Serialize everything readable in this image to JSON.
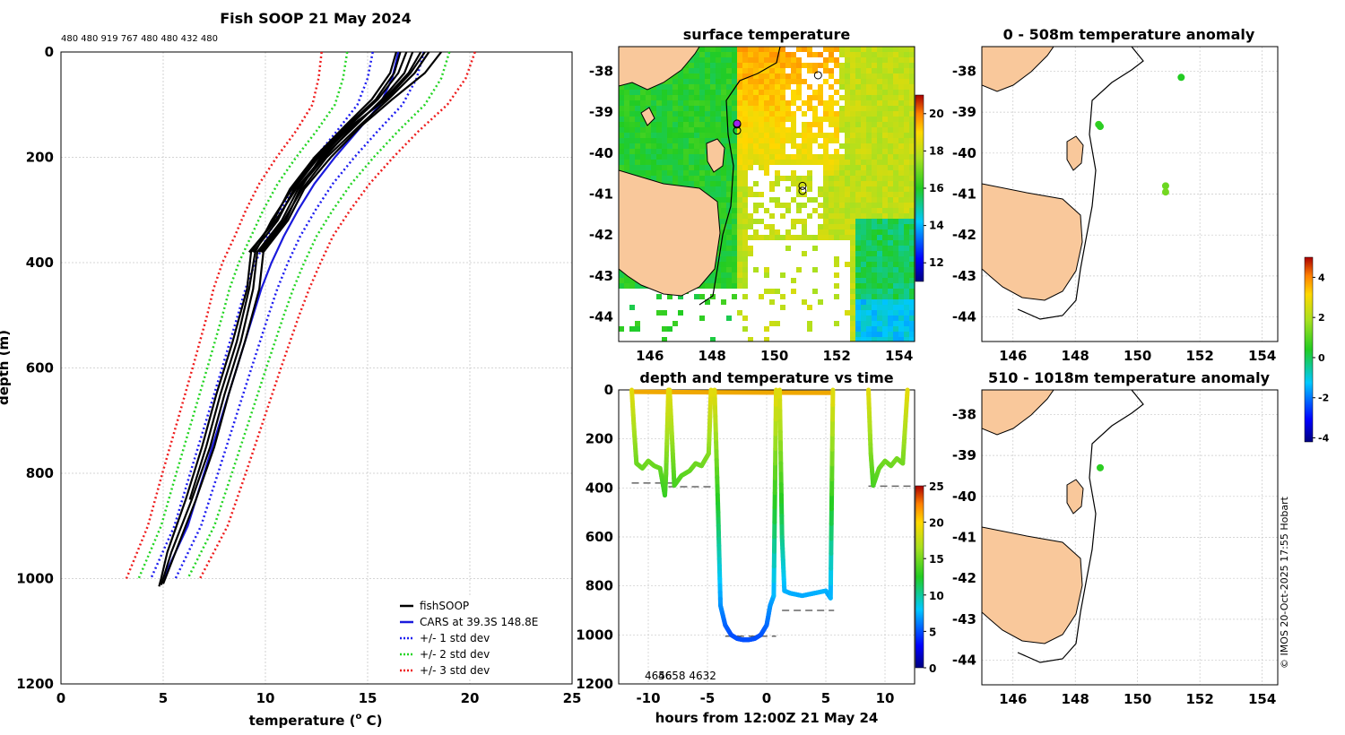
{
  "figure": {
    "title": "Fish SOOP 21 May 2024",
    "header_note": "480 480 919 767 480 480 432 480",
    "credit": "© IMOS 20-Oct-2025 17:55 Hobart"
  },
  "colors": {
    "land": "#f9c89b",
    "fishsoop": "#000000",
    "cars": "#1a1adc",
    "std1": "#1c1cf0",
    "std2": "#22d422",
    "std3": "#ee1c1c",
    "grid": "#c8c8c8"
  },
  "chart_data": [
    {
      "id": "profile",
      "type": "line",
      "title": "",
      "xlabel": "temperature (°C)",
      "xlabel_main": "temperature (",
      "xlabel_sup": "o",
      "xlabel_end": " C)",
      "ylabel": "depth (m)",
      "xlim": [
        0,
        25
      ],
      "ylim": [
        0,
        1200
      ],
      "xticks": [
        "0",
        "5",
        "10",
        "15",
        "20",
        "25"
      ],
      "yticks": [
        "0",
        "200",
        "400",
        "600",
        "800",
        "1000",
        "1200"
      ],
      "depth": [
        0,
        50,
        100,
        150,
        200,
        250,
        300,
        350,
        400,
        450,
        500,
        600,
        700,
        800,
        900,
        1000
      ],
      "cars_mean": [
        16.5,
        16.2,
        15.6,
        14.5,
        13.4,
        12.4,
        11.6,
        10.9,
        10.3,
        9.8,
        9.4,
        8.6,
        7.8,
        7.0,
        6.2,
        5.0
      ],
      "cars_std": [
        1.25,
        1.2,
        1.1,
        1.0,
        0.95,
        0.9,
        0.85,
        0.8,
        0.8,
        0.78,
        0.75,
        0.72,
        0.7,
        0.68,
        0.65,
        0.6
      ],
      "series": [
        {
          "name": "fishSOOP",
          "depth": [
            0,
            40,
            90,
            140,
            200,
            260,
            320,
            380,
            450,
            550,
            650,
            750,
            850,
            950,
            1000,
            1015
          ],
          "values": [
            16.4,
            16.1,
            15.2,
            13.9,
            12.4,
            11.2,
            10.4,
            9.3,
            9.1,
            8.4,
            7.6,
            6.9,
            6.1,
            5.2,
            4.9,
            4.8
          ]
        },
        {
          "name": "fishSOOP",
          "depth": [
            0,
            40,
            90,
            140,
            200,
            260,
            320,
            380,
            450,
            550,
            650,
            750,
            850,
            950,
            1000,
            1012
          ],
          "values": [
            17.6,
            17.0,
            15.8,
            14.3,
            12.9,
            11.6,
            10.8,
            9.6,
            9.4,
            8.8,
            8.0,
            7.3,
            6.4,
            5.4,
            5.0,
            4.9
          ]
        },
        {
          "name": "fishSOOP",
          "depth": [
            0,
            40,
            90,
            140,
            200,
            260,
            320,
            380,
            450,
            550,
            650,
            750,
            850,
            950,
            1000,
            1010
          ],
          "values": [
            18.6,
            17.8,
            16.2,
            14.7,
            13.2,
            11.9,
            11.1,
            9.9,
            9.7,
            9.0,
            8.2,
            7.5,
            6.6,
            5.6,
            5.1,
            5.0
          ]
        },
        {
          "name": "fishSOOP",
          "depth": [
            0,
            40,
            90,
            140,
            200,
            260,
            320,
            380
          ],
          "values": [
            16.9,
            16.5,
            15.5,
            14.1,
            12.6,
            11.4,
            10.6,
            9.4
          ]
        },
        {
          "name": "fishSOOP",
          "depth": [
            0,
            40,
            90,
            140,
            200,
            260,
            320,
            380
          ],
          "values": [
            17.2,
            16.8,
            15.7,
            14.4,
            12.8,
            11.5,
            10.5,
            9.2
          ]
        },
        {
          "name": "fishSOOP",
          "depth": [
            0,
            40,
            90,
            140,
            200,
            260,
            320,
            380
          ],
          "values": [
            18.0,
            17.3,
            16.0,
            14.6,
            13.0,
            11.8,
            10.9,
            9.7
          ]
        },
        {
          "name": "fishSOOP",
          "depth": [
            0,
            40,
            90,
            140,
            200,
            260,
            320,
            380,
            450,
            550,
            650,
            750,
            850
          ],
          "values": [
            16.6,
            16.3,
            15.4,
            14.0,
            12.5,
            11.3,
            10.3,
            9.5,
            9.2,
            8.6,
            7.8,
            7.1,
            6.3
          ]
        },
        {
          "name": "fishSOOP",
          "depth": [
            0,
            40,
            90,
            140,
            200,
            260,
            320,
            380
          ],
          "values": [
            17.8,
            17.1,
            15.9,
            14.2,
            12.7,
            11.7,
            11.0,
            9.8
          ]
        }
      ],
      "legend": [
        {
          "label": "fishSOOP",
          "style": "solid",
          "color": "#000000"
        },
        {
          "label": "CARS at 39.3S 148.8E",
          "style": "solid",
          "color": "#1a1adc"
        },
        {
          "label": "+/- 1 std dev",
          "style": "dotted",
          "color": "#1c1cf0"
        },
        {
          "label": "+/- 2 std dev",
          "style": "dotted",
          "color": "#22d422"
        },
        {
          "label": "+/- 3 std dev",
          "style": "dotted",
          "color": "#ee1c1c"
        }
      ],
      "legend_position": "bottom-right"
    },
    {
      "id": "sst_map",
      "type": "heatmap",
      "title": "surface temperature",
      "xlim": [
        145,
        154.5
      ],
      "ylim": [
        -44.6,
        -37.4
      ],
      "xticks": [
        "146",
        "148",
        "150",
        "152",
        "154"
      ],
      "yticks": [
        "-38",
        "-39",
        "-40",
        "-41",
        "-42",
        "-43",
        "-44"
      ],
      "colorbar": {
        "range": [
          11,
          21
        ],
        "ticks": [
          "12",
          "14",
          "16",
          "18",
          "20"
        ]
      },
      "stations": [
        {
          "lon": 148.8,
          "lat": -39.3
        },
        {
          "lon": 148.8,
          "lat": -39.45
        },
        {
          "lon": 150.9,
          "lat": -40.8
        },
        {
          "lon": 150.9,
          "lat": -40.92
        },
        {
          "lon": 151.4,
          "lat": -38.1
        }
      ]
    },
    {
      "id": "depth_time",
      "type": "scatter",
      "title": "depth and temperature vs time",
      "xlabel": "hours from 12:00Z 21 May 24",
      "xlim": [
        -12.5,
        12.5
      ],
      "ylim": [
        0,
        1200
      ],
      "xticks": [
        "-10",
        "-5",
        "0",
        "5",
        "10"
      ],
      "yticks": [
        "0",
        "200",
        "400",
        "600",
        "800",
        "1000",
        "1200"
      ],
      "colorbar": {
        "range": [
          0,
          25
        ],
        "ticks": [
          "0",
          "5",
          "10",
          "15",
          "20",
          "25"
        ]
      },
      "annotation": "4658 4632",
      "annotation_overlay": "4656",
      "dives": [
        {
          "t": [
            -11.4,
            -11.2,
            -11.0,
            -10.5,
            -10.0,
            -9.5,
            -9.0,
            -8.6,
            -8.5,
            -8.3
          ],
          "d": [
            0,
            160,
            300,
            320,
            290,
            310,
            320,
            430,
            340,
            0
          ]
        },
        {
          "t": [
            -8.2,
            -8.0,
            -7.8,
            -7.2,
            -6.5,
            -6.0,
            -5.5,
            -4.9,
            -4.7
          ],
          "d": [
            0,
            190,
            390,
            350,
            330,
            300,
            310,
            260,
            0
          ]
        },
        {
          "t": [
            -4.4,
            -4.1,
            -3.9,
            -3.5,
            -3.0,
            -2.5,
            -2.0,
            -1.5,
            -1.0,
            -0.5,
            0.0,
            0.3,
            0.6,
            0.8
          ],
          "d": [
            0,
            500,
            880,
            960,
            1000,
            1015,
            1020,
            1020,
            1015,
            1000,
            960,
            880,
            840,
            0
          ]
        },
        {
          "t": [
            1.1,
            1.3,
            1.5,
            2.0,
            3.0,
            4.0,
            5.0,
            5.4,
            5.6
          ],
          "d": [
            0,
            600,
            820,
            830,
            840,
            830,
            820,
            850,
            0
          ]
        },
        {
          "t": [
            8.6,
            8.8,
            9.0,
            9.5,
            10.0,
            10.5,
            11.0,
            11.5,
            11.9
          ],
          "d": [
            0,
            260,
            390,
            320,
            290,
            310,
            280,
            300,
            0
          ]
        }
      ],
      "bottom_lines": [
        {
          "t": [
            -11.4,
            -7.5
          ],
          "d": 380
        },
        {
          "t": [
            -8.3,
            -4.6
          ],
          "d": 395
        },
        {
          "t": [
            -3.5,
            0.8
          ],
          "d": 1005
        },
        {
          "t": [
            1.3,
            5.7
          ],
          "d": 900
        },
        {
          "t": [
            8.6,
            12.3
          ],
          "d": 393
        }
      ]
    },
    {
      "id": "anom_map_upper",
      "type": "scatter",
      "title": "0 - 508m temperature anomaly",
      "xlim": [
        145,
        154.5
      ],
      "ylim": [
        -44.6,
        -37.4
      ],
      "xticks": [
        "146",
        "148",
        "150",
        "152",
        "154"
      ],
      "yticks": [
        "-38",
        "-39",
        "-40",
        "-41",
        "-42",
        "-43",
        "-44"
      ],
      "points": [
        {
          "lon": 151.4,
          "lat": -38.15,
          "anomaly": 0.4
        },
        {
          "lon": 148.75,
          "lat": -39.3,
          "anomaly": 0.6
        },
        {
          "lon": 148.8,
          "lat": -39.35,
          "anomaly": 0.5
        },
        {
          "lon": 150.9,
          "lat": -40.8,
          "anomaly": 1.2
        },
        {
          "lon": 150.9,
          "lat": -40.95,
          "anomaly": 1.3
        }
      ]
    },
    {
      "id": "anom_map_lower",
      "type": "scatter",
      "title": "510 - 1018m temperature anomaly",
      "xlim": [
        145,
        154.5
      ],
      "ylim": [
        -44.6,
        -37.4
      ],
      "xticks": [
        "146",
        "148",
        "150",
        "152",
        "154"
      ],
      "yticks": [
        "-38",
        "-39",
        "-40",
        "-41",
        "-42",
        "-43",
        "-44"
      ],
      "points": [
        {
          "lon": 148.8,
          "lat": -39.3,
          "anomaly": 0.5
        }
      ]
    },
    {
      "id": "anomaly_colorbar",
      "type": "heatmap",
      "title": "",
      "range": [
        -4.2,
        5
      ],
      "ticks": [
        "4",
        "2",
        "0",
        "-2",
        "-4"
      ],
      "tick_values": [
        4,
        2,
        0,
        -2,
        -4
      ]
    }
  ]
}
